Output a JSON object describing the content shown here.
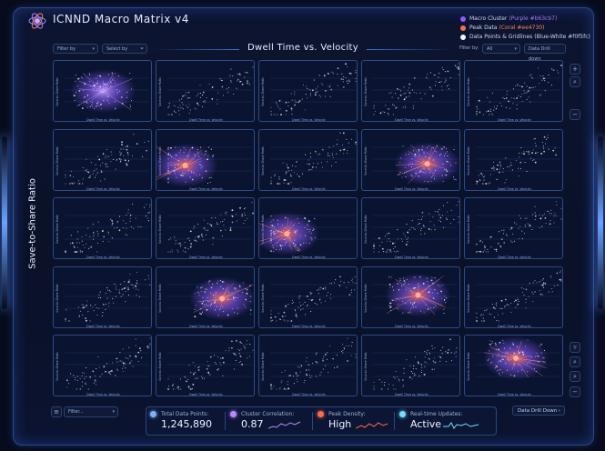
{
  "app": {
    "title": "ICNND Macro Matrix v4"
  },
  "legend": [
    {
      "label": "Macro Cluster",
      "code": "(Purple #b63cb7)",
      "color": "#8a5cff"
    },
    {
      "label": "Peak Data",
      "code": "(Coral #ee4730)",
      "color": "#ff6a4a"
    },
    {
      "label": "Data Points & Gridlines",
      "code": "(Blue-White #f0f5fc)",
      "color": "#f0f5fc"
    }
  ],
  "filters": {
    "left_filter": "Filter by",
    "left_select": "Select by",
    "right_label": "Filter by:",
    "right_value": "All",
    "drill": "Data Drill down"
  },
  "main": {
    "title": "Dwell Time vs. Velocity",
    "y_title": "Save-to-Share Ratio",
    "cell_xlabel": "Dwell Time vs. Velocity",
    "cell_ylabel": "Save-to-Share Ratio"
  },
  "footer_filter": "Filter...",
  "stats": [
    {
      "label": "Total Data Points:",
      "value": "1,245,890"
    },
    {
      "label": "Cluster Correlation:",
      "value": "0.87"
    },
    {
      "label": "Peak Density:",
      "value": "High"
    },
    {
      "label": "Real-time Updates:",
      "value": "Active"
    }
  ],
  "drill_button": "Data Drill Down",
  "colors": {
    "accent": "#3f6fd6",
    "cluster": "#8a5cff",
    "peak": "#ff6a4a",
    "point": "#dbe9ff"
  },
  "icons": {
    "logo": "atom-logo-icon",
    "zoom_in": "plus-icon",
    "zoom_search": "magnify-icon",
    "zoom_out": "minus-icon",
    "filter": "funnel-icon"
  }
}
